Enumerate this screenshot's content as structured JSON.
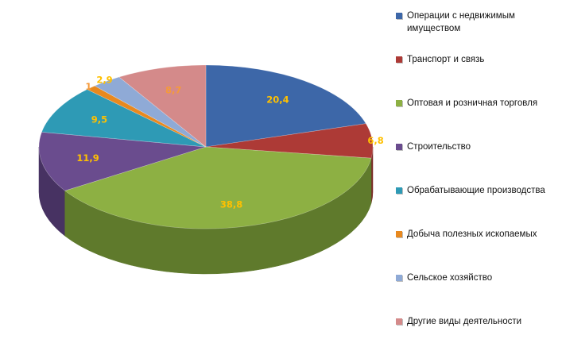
{
  "chart_data": {
    "type": "pie",
    "style": "3d",
    "legend_position": "right",
    "series": [
      {
        "name": "Операции с недвижимым имуществом",
        "value": 20.4,
        "label": "20,4",
        "color": "#3d67a8",
        "side": "#2a4877",
        "label_color": "#ffc000"
      },
      {
        "name": "Транспорт и связь",
        "value": 6.8,
        "label": "6,8",
        "color": "#ad3a36",
        "side": "#7a2826",
        "label_color": "#ffc000"
      },
      {
        "name": "Оптовая и розничная торговля",
        "value": 38.8,
        "label": "38,8",
        "color": "#8db043",
        "side": "#5f7a2c",
        "label_color": "#ffc000"
      },
      {
        "name": "Строительство",
        "value": 11.9,
        "label": "11,9",
        "color": "#6a4c8e",
        "side": "#473262",
        "label_color": "#ffc000"
      },
      {
        "name": "Обрабатывающие  производства",
        "value": 9.5,
        "label": "9,5",
        "color": "#2e9ab5",
        "side": "#1f6a7e",
        "label_color": "#ffc000"
      },
      {
        "name": "Добыча полезных ископаемых",
        "value": 1,
        "label": "1",
        "color": "#e8891f",
        "side": "#a35f12",
        "label_color": "#f59a3a"
      },
      {
        "name": "Сельское хозяйство",
        "value": 2.9,
        "label": "2,9",
        "color": "#8faad6",
        "side": "#627ca6",
        "label_color": "#ffc000"
      },
      {
        "name": "Другие виды деятельности",
        "value": 8.7,
        "label": "8,7",
        "color": "#d48a8a",
        "side": "#9a5c5c",
        "label_color": "#f59a3a"
      }
    ]
  }
}
